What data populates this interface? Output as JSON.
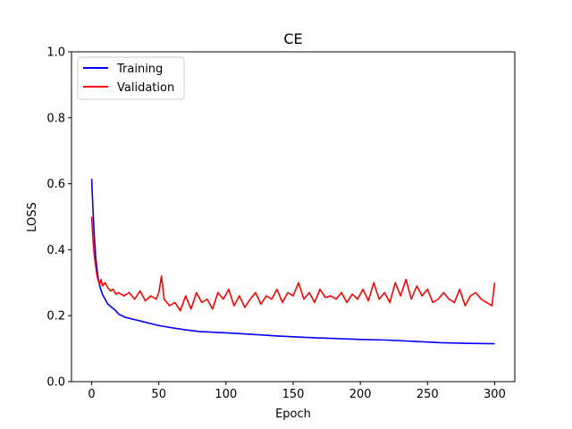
{
  "chart_data": {
    "type": "line",
    "title": "CE",
    "xlabel": "Epoch",
    "ylabel": "LOSS",
    "xlim": [
      -15,
      315
    ],
    "ylim": [
      0.0,
      1.0
    ],
    "xticks": [
      0,
      50,
      100,
      150,
      200,
      250,
      300
    ],
    "yticks": [
      0.0,
      0.2,
      0.4,
      0.6,
      0.8,
      1.0
    ],
    "xtick_labels": [
      "0",
      "50",
      "100",
      "150",
      "200",
      "250",
      "300"
    ],
    "ytick_labels": [
      "0.0",
      "0.2",
      "0.4",
      "0.6",
      "0.8",
      "1.0"
    ],
    "legend_position": "top-left",
    "grid": false,
    "series": [
      {
        "name": "Training",
        "color": "#0000ff",
        "x": [
          0,
          1,
          2,
          3,
          4,
          5,
          6,
          8,
          10,
          12,
          15,
          18,
          20,
          25,
          30,
          40,
          50,
          60,
          70,
          80,
          90,
          100,
          120,
          140,
          160,
          180,
          200,
          220,
          240,
          260,
          280,
          300
        ],
        "y": [
          0.615,
          0.52,
          0.44,
          0.38,
          0.34,
          0.31,
          0.29,
          0.265,
          0.25,
          0.235,
          0.225,
          0.215,
          0.205,
          0.195,
          0.19,
          0.18,
          0.17,
          0.163,
          0.157,
          0.152,
          0.15,
          0.148,
          0.143,
          0.138,
          0.134,
          0.131,
          0.128,
          0.126,
          0.122,
          0.118,
          0.116,
          0.115
        ]
      },
      {
        "name": "Validation",
        "color": "#ff0000",
        "x": [
          0,
          1,
          2,
          3,
          4,
          5,
          6,
          7,
          8,
          10,
          12,
          14,
          16,
          18,
          20,
          24,
          28,
          32,
          36,
          40,
          44,
          48,
          50,
          52,
          54,
          58,
          62,
          66,
          70,
          74,
          78,
          82,
          86,
          90,
          94,
          98,
          102,
          106,
          110,
          114,
          118,
          122,
          126,
          130,
          134,
          138,
          142,
          146,
          150,
          154,
          158,
          162,
          166,
          170,
          174,
          178,
          182,
          186,
          190,
          194,
          198,
          202,
          206,
          210,
          214,
          218,
          222,
          226,
          230,
          234,
          238,
          242,
          246,
          250,
          254,
          258,
          262,
          266,
          270,
          274,
          278,
          282,
          286,
          290,
          294,
          298,
          300
        ],
        "y": [
          0.5,
          0.43,
          0.38,
          0.35,
          0.32,
          0.305,
          0.295,
          0.31,
          0.29,
          0.3,
          0.285,
          0.275,
          0.28,
          0.265,
          0.27,
          0.26,
          0.27,
          0.25,
          0.275,
          0.245,
          0.26,
          0.25,
          0.27,
          0.32,
          0.25,
          0.23,
          0.24,
          0.215,
          0.26,
          0.22,
          0.27,
          0.24,
          0.25,
          0.22,
          0.27,
          0.25,
          0.28,
          0.23,
          0.26,
          0.225,
          0.25,
          0.27,
          0.235,
          0.26,
          0.25,
          0.28,
          0.24,
          0.27,
          0.26,
          0.3,
          0.25,
          0.27,
          0.24,
          0.28,
          0.255,
          0.26,
          0.25,
          0.27,
          0.24,
          0.265,
          0.25,
          0.28,
          0.245,
          0.3,
          0.25,
          0.27,
          0.24,
          0.3,
          0.26,
          0.31,
          0.25,
          0.29,
          0.26,
          0.28,
          0.24,
          0.25,
          0.27,
          0.25,
          0.24,
          0.28,
          0.23,
          0.26,
          0.27,
          0.25,
          0.24,
          0.23,
          0.3
        ]
      }
    ]
  }
}
